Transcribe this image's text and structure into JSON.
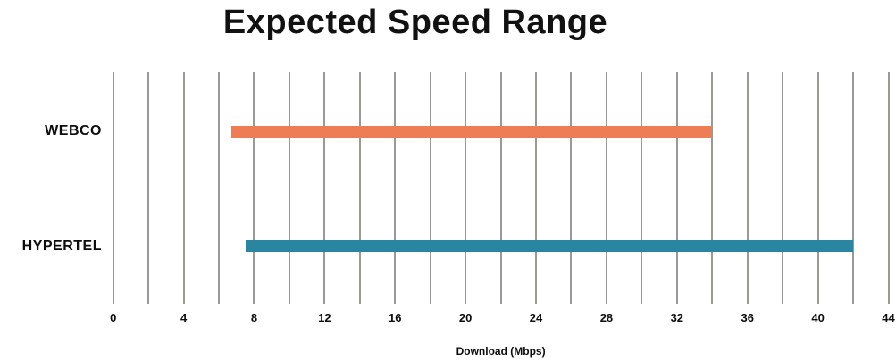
{
  "title": "Expected Speed Range",
  "chart_data": {
    "type": "bar",
    "subtype": "horizontal-range-bars",
    "title": "Expected Speed Range",
    "categories": [
      "WEBCO",
      "HYPERTEL"
    ],
    "series": [
      {
        "name": "WEBCO",
        "range_min": 6.7,
        "range_max": 34,
        "color": "#EE7C54"
      },
      {
        "name": "HYPERTEL",
        "range_min": 7.5,
        "range_max": 42,
        "color": "#2A86A0"
      }
    ],
    "xlabel": "Download (Mbps)",
    "xlim": [
      0,
      44
    ],
    "x_tick_labels": [
      0,
      4,
      8,
      12,
      16,
      20,
      24,
      28,
      32,
      36,
      40,
      44
    ],
    "gridline_step": 2,
    "grid": true,
    "legend": "none",
    "gridline_color": "#9B9995",
    "text_color": "#0c0c0c",
    "background_color": "#ffffff"
  }
}
